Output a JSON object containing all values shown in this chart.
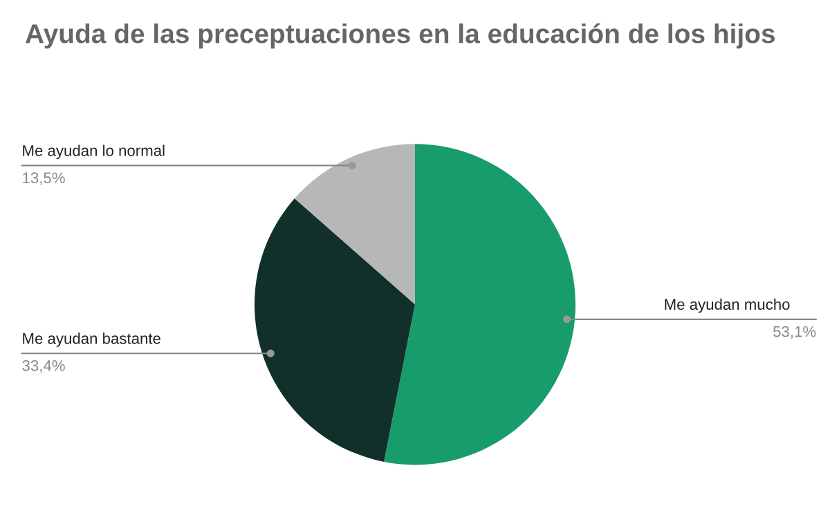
{
  "chart_data": {
    "type": "pie",
    "title": "Ayuda de las preceptuaciones en la educación de los hijos",
    "categories": [
      "Me ayudan mucho",
      "Me ayudan bastante",
      "Me ayudan lo normal"
    ],
    "values": [
      53.1,
      33.4,
      13.5
    ],
    "colors": [
      "#189c6c",
      "#12302a",
      "#b7b7b7"
    ],
    "value_labels": [
      "53,1%",
      "33,4%",
      "13,5%"
    ]
  }
}
